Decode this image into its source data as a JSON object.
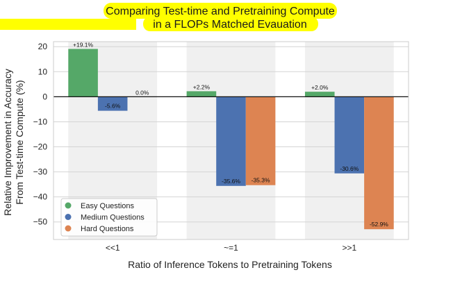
{
  "chart_data": {
    "type": "bar",
    "title_lines": [
      "Comparing Test-time and Pretraining Compute",
      "in a FLOPs Matched Evauation"
    ],
    "xlabel": "Ratio of Inference Tokens to Pretraining Tokens",
    "ylabel_lines": [
      "Relative Improvement in Accuracy",
      "From Test-time Compute (%)"
    ],
    "categories": [
      "<<1",
      "~=1",
      ">>1"
    ],
    "ylim": [
      -57,
      22
    ],
    "yticks": [
      20,
      10,
      0,
      -10,
      -20,
      -30,
      -40,
      -50
    ],
    "series": [
      {
        "name": "Easy Questions",
        "color": "#55a868",
        "values": [
          19.1,
          2.2,
          2.0
        ],
        "labels": [
          "+19.1%",
          "+2.2%",
          "+2.0%"
        ]
      },
      {
        "name": "Medium Questions",
        "color": "#4c72b0",
        "values": [
          -5.6,
          -35.6,
          -30.6
        ],
        "labels": [
          "-5.6%",
          "-35.6%",
          "-30.6%"
        ]
      },
      {
        "name": "Hard Questions",
        "color": "#dd8452",
        "values": [
          0.0,
          -35.3,
          -52.9
        ],
        "labels": [
          "0.0%",
          "-35.3%",
          "-52.9%"
        ]
      }
    ],
    "grid": true,
    "legend": "bottom-left",
    "title_highlight": "#ffff00",
    "band_color": "#f0f0f0"
  }
}
